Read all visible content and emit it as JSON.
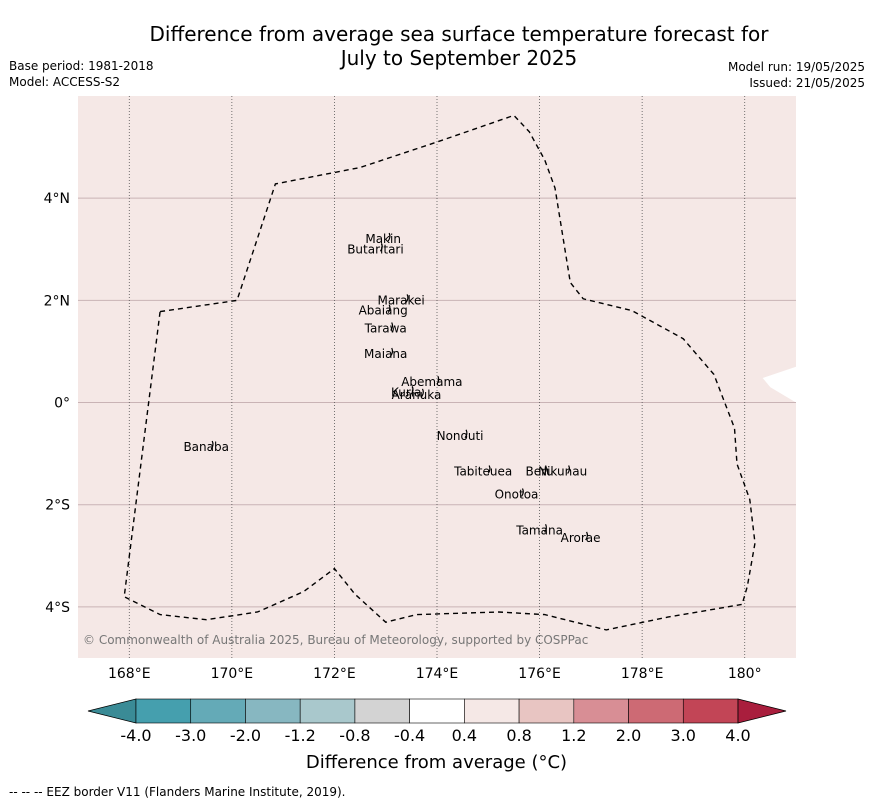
{
  "header": {
    "title_line1": "Difference from average sea surface temperature forecast for",
    "title_line2": "July to September 2025",
    "base_period": "Base period: 1981-2018",
    "model": "Model: ACCESS-S2",
    "model_run": "Model run: 19/05/2025",
    "issued": "Issued: 21/05/2025"
  },
  "map": {
    "background_color": "#f5e8e6",
    "lon_range": [
      167,
      181
    ],
    "lat_range": [
      -5,
      6
    ],
    "x_ticks": [
      {
        "lon": 168,
        "label": "168°E"
      },
      {
        "lon": 170,
        "label": "170°E"
      },
      {
        "lon": 172,
        "label": "172°E"
      },
      {
        "lon": 174,
        "label": "174°E"
      },
      {
        "lon": 176,
        "label": "176°E"
      },
      {
        "lon": 178,
        "label": "178°E"
      },
      {
        "lon": 180,
        "label": "180°"
      }
    ],
    "y_ticks": [
      {
        "lat": 4,
        "label": "4°N"
      },
      {
        "lat": 2,
        "label": "2°N"
      },
      {
        "lat": 0,
        "label": "0°"
      },
      {
        "lat": -2,
        "label": "2°S"
      },
      {
        "lat": -4,
        "label": "4°S"
      }
    ],
    "copyright": "© Commonwealth of Australia 2025, Bureau of Meteorology, supported by COSPPac",
    "islands": [
      {
        "name": "Makin",
        "lon": 172.95,
        "lat": 3.2
      },
      {
        "name": "Butaritari",
        "lon": 172.8,
        "lat": 3.0
      },
      {
        "name": "Marakei",
        "lon": 173.3,
        "lat": 2.0
      },
      {
        "name": "Abaiang",
        "lon": 172.95,
        "lat": 1.8
      },
      {
        "name": "Tarawa",
        "lon": 173.0,
        "lat": 1.45
      },
      {
        "name": "Maiana",
        "lon": 173.0,
        "lat": 0.95
      },
      {
        "name": "Abemama",
        "lon": 173.9,
        "lat": 0.4
      },
      {
        "name": "Kuria",
        "lon": 173.4,
        "lat": 0.2
      },
      {
        "name": "Aranuka",
        "lon": 173.6,
        "lat": 0.15
      },
      {
        "name": "Nonouti",
        "lon": 174.45,
        "lat": -0.65
      },
      {
        "name": "Banaba",
        "lon": 169.5,
        "lat": -0.87
      },
      {
        "name": "Tabiteuea",
        "lon": 174.9,
        "lat": -1.35
      },
      {
        "name": "Beru",
        "lon": 176.0,
        "lat": -1.35
      },
      {
        "name": "Nikunau",
        "lon": 176.45,
        "lat": -1.35
      },
      {
        "name": "Onotoa",
        "lon": 175.55,
        "lat": -1.8
      },
      {
        "name": "Tamana",
        "lon": 176.0,
        "lat": -2.5
      },
      {
        "name": "Arorae",
        "lon": 176.8,
        "lat": -2.65
      }
    ],
    "eez_border": [
      [
        168.6,
        1.78
      ],
      [
        170.1,
        2.0
      ],
      [
        170.85,
        4.28
      ],
      [
        172.5,
        4.6
      ],
      [
        174.0,
        5.1
      ],
      [
        175.5,
        5.62
      ],
      [
        175.8,
        5.3
      ],
      [
        176.1,
        4.75
      ],
      [
        176.3,
        4.2
      ],
      [
        176.6,
        2.35
      ],
      [
        176.85,
        2.03
      ],
      [
        177.8,
        1.8
      ],
      [
        178.8,
        1.25
      ],
      [
        179.4,
        0.55
      ],
      [
        179.8,
        -0.5
      ],
      [
        179.85,
        -1.2
      ],
      [
        180.1,
        -1.9
      ],
      [
        180.2,
        -2.75
      ],
      [
        180.05,
        -3.6
      ],
      [
        179.95,
        -3.95
      ],
      [
        178.5,
        -4.2
      ],
      [
        177.3,
        -4.45
      ],
      [
        176.1,
        -4.15
      ],
      [
        175.2,
        -4.1
      ],
      [
        173.6,
        -4.15
      ],
      [
        173.0,
        -4.3
      ],
      [
        172.4,
        -3.75
      ],
      [
        172.0,
        -3.25
      ],
      [
        171.4,
        -3.7
      ],
      [
        170.5,
        -4.1
      ],
      [
        169.5,
        -4.25
      ],
      [
        168.6,
        -4.15
      ],
      [
        167.9,
        -3.8
      ],
      [
        168.6,
        1.78
      ]
    ],
    "land_patch_color": "#ffffff"
  },
  "colorbar": {
    "title": "Difference from average (°C)",
    "tick_labels": [
      "-4.0",
      "-3.0",
      "-2.0",
      "-1.2",
      "-0.8",
      "-0.4",
      "0.4",
      "0.8",
      "1.2",
      "2.0",
      "3.0",
      "4.0"
    ],
    "colors": [
      "#3a8b96",
      "#459fae",
      "#64aab7",
      "#87b7c1",
      "#a9c8cc",
      "#d3d3d3",
      "#ffffff",
      "#f5e8e6",
      "#e8c5c2",
      "#d88e95",
      "#cd6a74",
      "#c24556",
      "#a91e3d"
    ]
  },
  "footnote": "--  --  -- EEZ border V11 (Flanders Marine Institute, 2019)."
}
